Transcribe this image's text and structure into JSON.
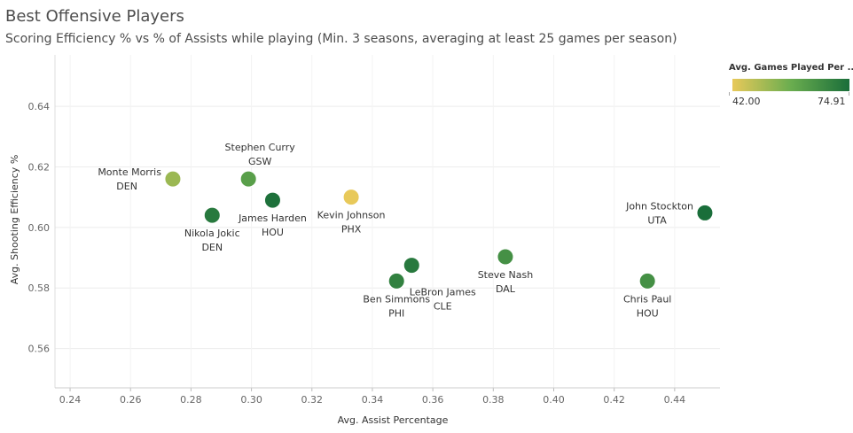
{
  "header": {
    "title": "Best Offensive Players",
    "subtitle": "Scoring Efficiency % vs % of Assists while playing (Min. 3 seasons, averaging at least 25 games per season)"
  },
  "legend": {
    "title": "Avg. Games Played Per ..",
    "min_label": "42.00",
    "max_label": "74.91",
    "color_low": "#e8c95a",
    "color_mid": "#6aad4f",
    "color_high": "#1a6e3a"
  },
  "chart_data": {
    "type": "scatter",
    "xlabel": "Avg. Assist Percentage",
    "ylabel": "Avg. Shooting Efficiency %",
    "xlim": [
      0.235,
      0.455
    ],
    "ylim": [
      0.547,
      0.657
    ],
    "x_ticks": [
      "0.24",
      "0.26",
      "0.28",
      "0.30",
      "0.32",
      "0.34",
      "0.36",
      "0.38",
      "0.40",
      "0.42",
      "0.44"
    ],
    "x_tick_values": [
      0.24,
      0.26,
      0.28,
      0.3,
      0.32,
      0.34,
      0.36,
      0.38,
      0.4,
      0.42,
      0.44
    ],
    "y_ticks": [
      "0.56",
      "0.58",
      "0.60",
      "0.62",
      "0.64"
    ],
    "y_tick_values": [
      0.56,
      0.58,
      0.6,
      0.62,
      0.64
    ],
    "grid": true,
    "color_range": [
      42.0,
      74.91
    ],
    "points": [
      {
        "name": "Monte Morris",
        "team": "DEN",
        "x": 0.274,
        "y": 0.616,
        "games": 52,
        "label_side": "left"
      },
      {
        "name": "Stephen Curry",
        "team": "GSW",
        "x": 0.299,
        "y": 0.616,
        "games": 62,
        "label_side": "above"
      },
      {
        "name": "Nikola Jokic",
        "team": "DEN",
        "x": 0.287,
        "y": 0.604,
        "games": 72,
        "label_side": "below"
      },
      {
        "name": "James Harden",
        "team": "HOU",
        "x": 0.307,
        "y": 0.609,
        "games": 74,
        "label_side": "below"
      },
      {
        "name": "Kevin Johnson",
        "team": "PHX",
        "x": 0.333,
        "y": 0.61,
        "games": 42,
        "label_side": "below"
      },
      {
        "name": "Ben Simmons",
        "team": "PHI",
        "x": 0.348,
        "y": 0.5823,
        "games": 70,
        "label_side": "below"
      },
      {
        "name": "LeBron James",
        "team": "CLE",
        "x": 0.353,
        "y": 0.5875,
        "games": 72,
        "label_side": "below-right"
      },
      {
        "name": "Steve Nash",
        "team": "DAL",
        "x": 0.384,
        "y": 0.5903,
        "games": 66,
        "label_side": "below"
      },
      {
        "name": "John Stockton",
        "team": "UTA",
        "x": 0.45,
        "y": 0.6048,
        "games": 74.91,
        "label_side": "left"
      },
      {
        "name": "Chris Paul",
        "team": "HOU",
        "x": 0.431,
        "y": 0.5823,
        "games": 66,
        "label_side": "below"
      }
    ]
  }
}
